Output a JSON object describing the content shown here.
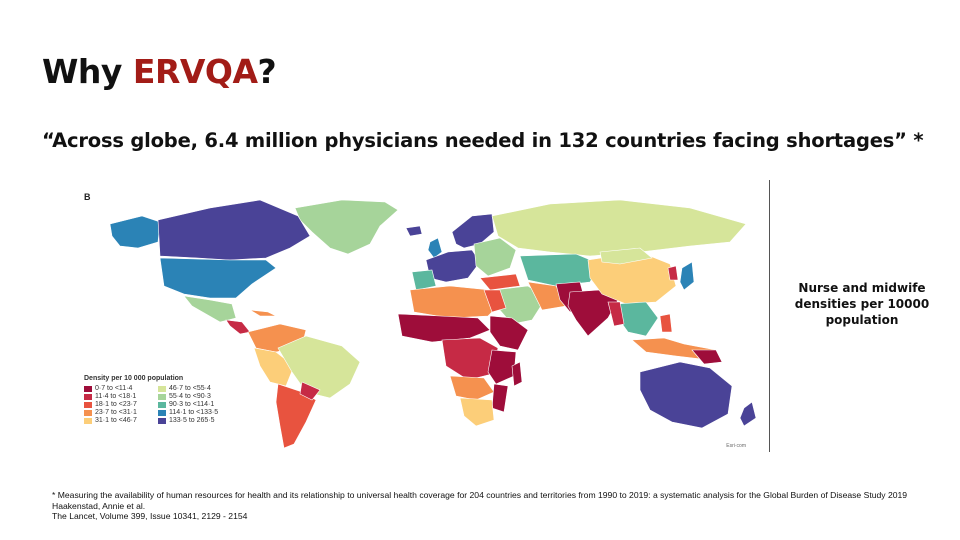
{
  "title": {
    "prefix": "Why ",
    "highlight": "ERVQA",
    "suffix": "?"
  },
  "quote": "“Across globe, 6.4 million physicians needed in 132 countries facing shortages” *",
  "figure": {
    "panel_letter": "B",
    "legend_title": "Density per 10 000 population",
    "legend_items": [
      {
        "label": "0·7 to <11·4",
        "color": "#9e0d3a"
      },
      {
        "label": "46·7 to <55·4",
        "color": "#d6e59a"
      },
      {
        "label": "11·4 to <18·1",
        "color": "#c62a45"
      },
      {
        "label": "55·4 to <90·3",
        "color": "#a6d49a"
      },
      {
        "label": "18·1 to <23·7",
        "color": "#e8533f"
      },
      {
        "label": "90·3 to <114·1",
        "color": "#5bb79e"
      },
      {
        "label": "23·7 to <31·1",
        "color": "#f5914f"
      },
      {
        "label": "114·1 to <133·5",
        "color": "#2b83b6"
      },
      {
        "label": "31·1 to <46·7",
        "color": "#fcce79"
      },
      {
        "label": "133·5 to 265·5",
        "color": "#4a4397"
      }
    ],
    "source_label": "Esri·com"
  },
  "side_label": "Nurse and  midwife densities per 10000 population",
  "footnote": {
    "line1": "* Measuring the availability of human resources for health and its relationship to universal health coverage for 204 countries and territories from 1990 to 2019: a systematic analysis for the Global Burden of Disease Study 2019",
    "line2": "Haakenstad, Annie et al.",
    "line3": "The Lancet, Volume 399, Issue 10341, 2129 - 2154"
  }
}
